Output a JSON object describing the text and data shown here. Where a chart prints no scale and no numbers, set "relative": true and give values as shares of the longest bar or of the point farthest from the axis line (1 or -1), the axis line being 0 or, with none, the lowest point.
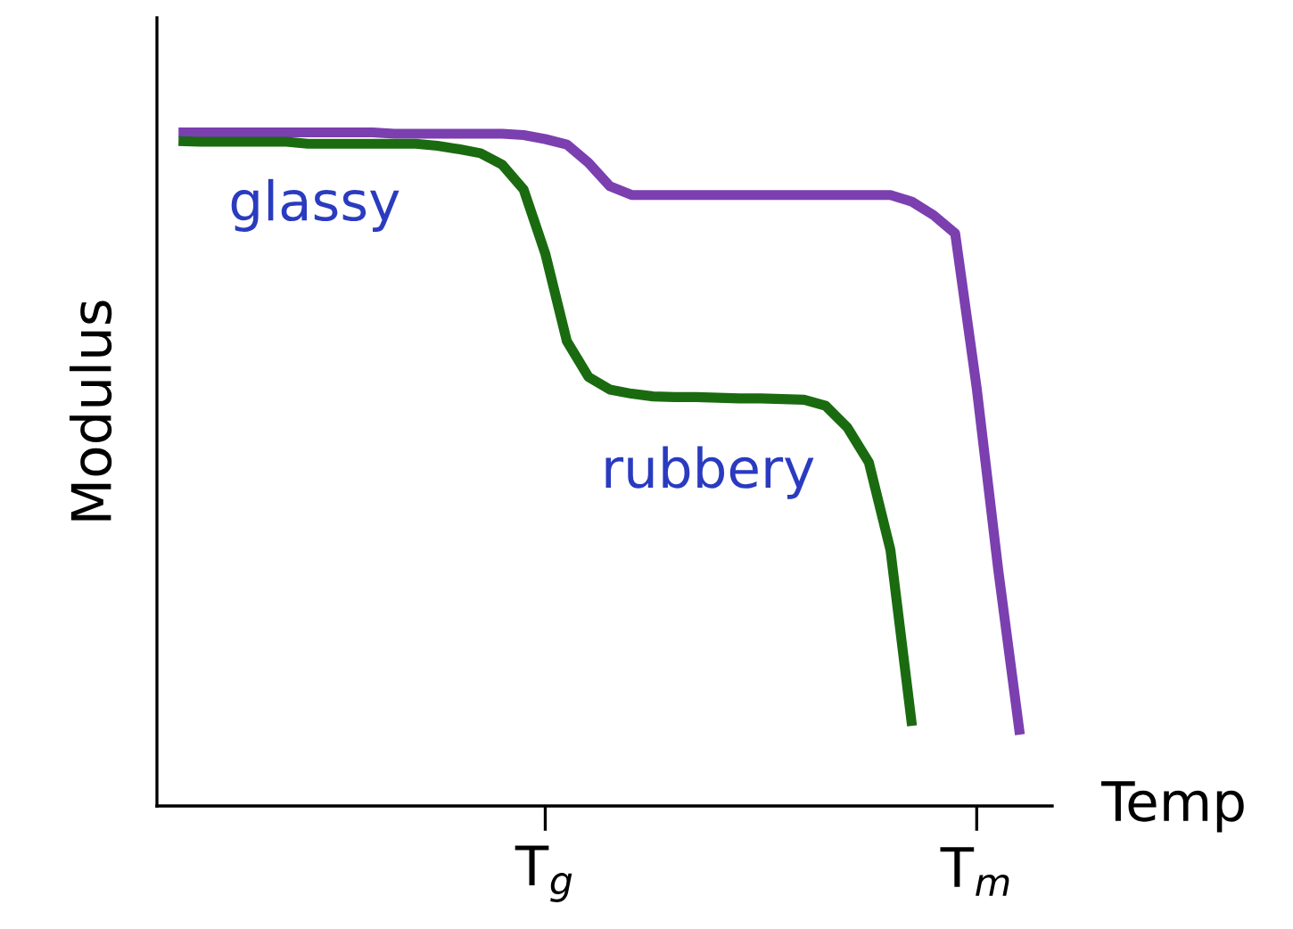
{
  "chart_data": {
    "type": "line",
    "relative": true,
    "xlabel": "Temp",
    "ylabel": "Modulus",
    "categories": [
      null,
      null,
      null,
      null,
      null,
      null,
      null,
      null,
      null,
      null,
      null,
      null,
      null,
      null,
      null,
      null,
      null,
      null,
      "T$_{g}$",
      null,
      null,
      null,
      null,
      null,
      null,
      null,
      null,
      null,
      null,
      null,
      null,
      null,
      null,
      null,
      null,
      null,
      null,
      null,
      "T$_{m}$",
      null,
      null,
      null
    ],
    "grid": false,
    "legend": false,
    "marker": "none",
    "line_style": "solid",
    "series": [
      {
        "color": "#7b3fb0",
        "values": [
          null,
          1.0,
          1.0,
          1.0,
          1.0,
          1.0,
          1.0,
          1.0,
          1.0,
          1.0,
          1.0,
          0.998,
          0.998,
          0.998,
          0.998,
          0.998,
          0.998,
          0.996,
          0.99,
          0.982,
          0.955,
          0.92,
          0.907,
          0.907,
          0.907,
          0.907,
          0.907,
          0.907,
          0.907,
          0.907,
          0.907,
          0.907,
          0.907,
          0.907,
          0.907,
          0.897,
          0.877,
          0.85,
          0.62,
          0.35,
          0.106,
          null
        ]
      },
      {
        "color": "#1a6b10",
        "values": [
          null,
          0.987,
          0.986,
          0.986,
          0.986,
          0.986,
          0.986,
          0.983,
          0.983,
          0.983,
          0.983,
          0.983,
          0.983,
          0.98,
          0.975,
          0.969,
          0.952,
          0.915,
          0.82,
          0.69,
          0.637,
          0.618,
          0.612,
          0.608,
          0.607,
          0.607,
          0.606,
          0.605,
          0.605,
          0.604,
          0.603,
          0.594,
          0.562,
          0.51,
          0.38,
          0.119,
          null,
          null,
          null,
          null,
          null,
          null
        ]
      }
    ],
    "annotations": [
      "glassy",
      "rubbery"
    ]
  }
}
